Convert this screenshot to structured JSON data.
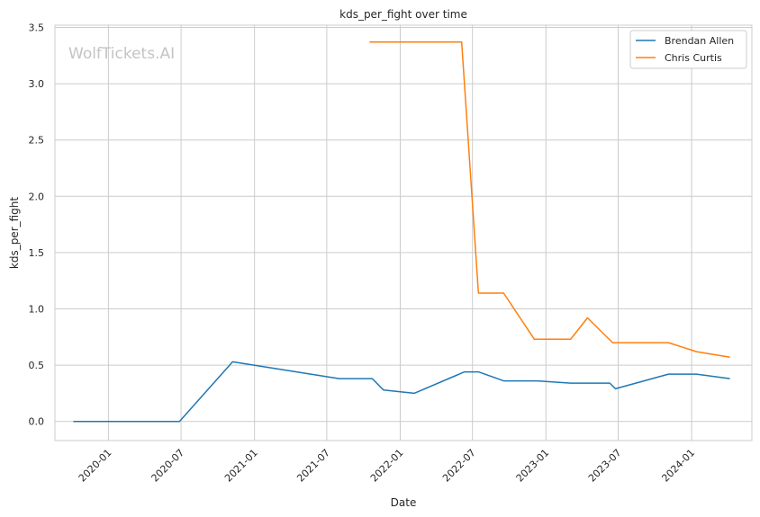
{
  "chart_data": {
    "type": "line",
    "title": "kds_per_fight over time",
    "xlabel": "Date",
    "ylabel": "kds_per_fight",
    "watermark": "WolfTickets.AI",
    "x_ticks": [
      "2020-01",
      "2020-07",
      "2021-01",
      "2021-07",
      "2022-01",
      "2022-07",
      "2023-01",
      "2023-07",
      "2024-01"
    ],
    "y_ticks": [
      "0.0",
      "0.5",
      "1.0",
      "1.5",
      "2.0",
      "2.5",
      "3.0",
      "3.5"
    ],
    "xlim": [
      "2019-08-20",
      "2024-05-31"
    ],
    "ylim": [
      -0.17,
      3.52
    ],
    "grid": true,
    "legend_position": "top-right",
    "series": [
      {
        "name": "Brendan Allen",
        "color": "#1f77b4",
        "points": [
          [
            "2019-10-05",
            0.0
          ],
          [
            "2020-06-27",
            0.0
          ],
          [
            "2020-11-07",
            0.53
          ],
          [
            "2021-08-01",
            0.38
          ],
          [
            "2021-10-23",
            0.38
          ],
          [
            "2021-11-20",
            0.28
          ],
          [
            "2022-02-05",
            0.25
          ],
          [
            "2022-06-11",
            0.44
          ],
          [
            "2022-07-16",
            0.44
          ],
          [
            "2022-09-17",
            0.36
          ],
          [
            "2022-12-10",
            0.36
          ],
          [
            "2023-03-04",
            0.34
          ],
          [
            "2023-06-10",
            0.34
          ],
          [
            "2023-06-24",
            0.29
          ],
          [
            "2023-11-04",
            0.42
          ],
          [
            "2024-01-13",
            0.42
          ],
          [
            "2024-04-06",
            0.38
          ]
        ]
      },
      {
        "name": "Chris Curtis",
        "color": "#ff7f0e",
        "points": [
          [
            "2021-10-16",
            3.37
          ],
          [
            "2022-06-04",
            3.37
          ],
          [
            "2022-07-16",
            1.14
          ],
          [
            "2022-09-17",
            1.14
          ],
          [
            "2022-12-03",
            0.73
          ],
          [
            "2023-03-04",
            0.73
          ],
          [
            "2023-04-15",
            0.92
          ],
          [
            "2023-06-17",
            0.7
          ],
          [
            "2023-11-04",
            0.7
          ],
          [
            "2024-01-13",
            0.62
          ],
          [
            "2024-04-06",
            0.57
          ]
        ]
      }
    ]
  }
}
